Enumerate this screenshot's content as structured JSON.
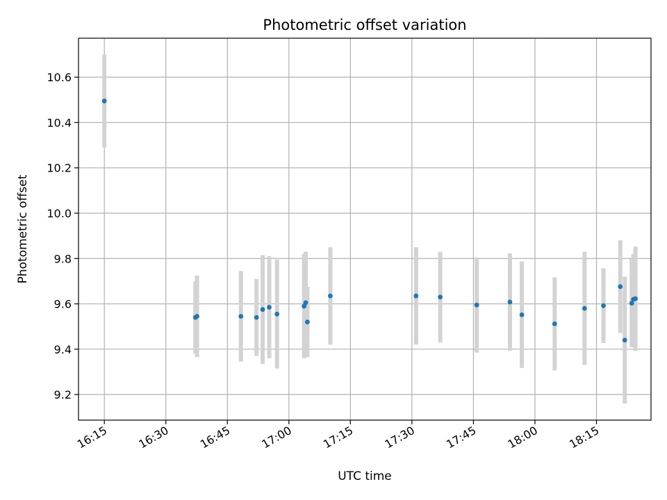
{
  "chart_data": {
    "type": "scatter",
    "title": "Photometric offset variation",
    "xlabel": "UTC time",
    "ylabel": "Photometric offset",
    "x_tick_labels": [
      "16:15",
      "16:30",
      "16:45",
      "17:00",
      "17:15",
      "17:30",
      "17:45",
      "18:00",
      "18:15"
    ],
    "y_tick_labels": [
      "9.2",
      "9.4",
      "9.6",
      "9.8",
      "10.0",
      "10.2",
      "10.4",
      "10.6"
    ],
    "x_ticks_minutes": [
      975,
      990,
      1005,
      1020,
      1035,
      1050,
      1065,
      1080,
      1095
    ],
    "y_ticks": [
      9.2,
      9.4,
      9.6,
      9.8,
      10.0,
      10.2,
      10.4,
      10.6
    ],
    "xlim_minutes": [
      968.7,
      1108.3
    ],
    "ylim": [
      9.087,
      10.772
    ],
    "grid": true,
    "colors": {
      "point": "#1f77b4",
      "error_bar": "#d3d3d3",
      "grid": "#b0b0b0",
      "axes": "#000000"
    },
    "points": [
      {
        "t": 975.0,
        "y": 10.495,
        "err": 0.205
      },
      {
        "t": 997.2,
        "y": 9.54,
        "err": 0.16
      },
      {
        "t": 997.6,
        "y": 9.545,
        "err": 0.18
      },
      {
        "t": 1008.3,
        "y": 9.545,
        "err": 0.2
      },
      {
        "t": 1012.1,
        "y": 9.54,
        "err": 0.17
      },
      {
        "t": 1013.6,
        "y": 9.575,
        "err": 0.24
      },
      {
        "t": 1015.2,
        "y": 9.585,
        "err": 0.225
      },
      {
        "t": 1017.1,
        "y": 9.555,
        "err": 0.24
      },
      {
        "t": 1023.7,
        "y": 9.59,
        "err": 0.23
      },
      {
        "t": 1024.1,
        "y": 9.605,
        "err": 0.225
      },
      {
        "t": 1024.5,
        "y": 9.52,
        "err": 0.155
      },
      {
        "t": 1030.1,
        "y": 9.635,
        "err": 0.215
      },
      {
        "t": 1051.0,
        "y": 9.635,
        "err": 0.215
      },
      {
        "t": 1056.9,
        "y": 9.63,
        "err": 0.2
      },
      {
        "t": 1065.8,
        "y": 9.595,
        "err": 0.21
      },
      {
        "t": 1073.9,
        "y": 9.608,
        "err": 0.215
      },
      {
        "t": 1076.8,
        "y": 9.552,
        "err": 0.235
      },
      {
        "t": 1084.8,
        "y": 9.512,
        "err": 0.205
      },
      {
        "t": 1092.1,
        "y": 9.58,
        "err": 0.25
      },
      {
        "t": 1096.7,
        "y": 9.592,
        "err": 0.165
      },
      {
        "t": 1100.8,
        "y": 9.676,
        "err": 0.205
      },
      {
        "t": 1103.6,
        "y": 9.603,
        "err": 0.195
      },
      {
        "t": 1104.0,
        "y": 9.62,
        "err": 0.2
      },
      {
        "t": 1104.5,
        "y": 9.623,
        "err": 0.23
      },
      {
        "t": 1101.9,
        "y": 9.44,
        "err": 0.28
      }
    ]
  }
}
